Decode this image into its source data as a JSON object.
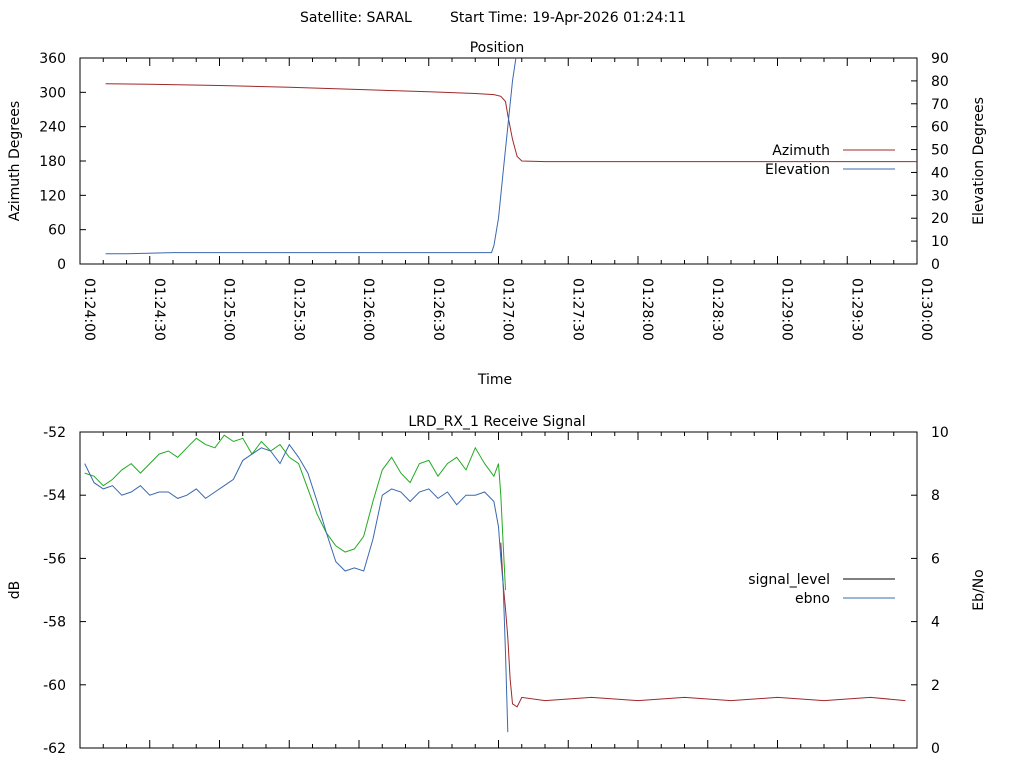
{
  "header": {
    "satellite": "Satellite: SARAL",
    "start_time": "Start Time: 19-Apr-2026 01:24:11"
  },
  "chart_data": [
    {
      "type": "line",
      "title": "Position",
      "xlabel": "Time",
      "ylabel": "Azimuth Degrees",
      "y2label": "Elevation Degrees",
      "x_ticks": [
        "01:24:00",
        "01:24:30",
        "01:25:00",
        "01:25:30",
        "01:26:00",
        "01:26:30",
        "01:27:00",
        "01:27:30",
        "01:28:00",
        "01:28:30",
        "01:29:00",
        "01:29:30",
        "01:30:00"
      ],
      "xlim_seconds": [
        0,
        360
      ],
      "ylim": [
        0,
        360
      ],
      "y2lim": [
        0,
        90
      ],
      "y_ticks": [
        "0",
        "60",
        "120",
        "180",
        "240",
        "300",
        "360"
      ],
      "y2_ticks": [
        "0",
        "10",
        "20",
        "30",
        "40",
        "50",
        "60",
        "70",
        "80",
        "90"
      ],
      "legend": "right",
      "series": [
        {
          "name": "Azimuth",
          "axis": "y",
          "color": "#a0282a",
          "points": [
            [
              11,
              315
            ],
            [
              30,
              314
            ],
            [
              60,
              312
            ],
            [
              90,
              309
            ],
            [
              120,
              305
            ],
            [
              150,
              301
            ],
            [
              170,
              298
            ],
            [
              178,
              296
            ],
            [
              181,
              293
            ],
            [
              183,
              284
            ],
            [
              184,
              260
            ],
            [
              186,
              218
            ],
            [
              188,
              188
            ],
            [
              190,
              180
            ],
            [
              200,
              179
            ],
            [
              250,
              179
            ],
            [
              300,
              179
            ],
            [
              360,
              179
            ]
          ]
        },
        {
          "name": "Elevation",
          "axis": "y2",
          "color": "#3a68b0",
          "points": [
            [
              11,
              4.5
            ],
            [
              20,
              4.5
            ],
            [
              40,
              5
            ],
            [
              80,
              5
            ],
            [
              120,
              5
            ],
            [
              160,
              5
            ],
            [
              175,
              5
            ],
            [
              177,
              5
            ],
            [
              178,
              8
            ],
            [
              180,
              20
            ],
            [
              182,
              40
            ],
            [
              184,
              60
            ],
            [
              186,
              80
            ],
            [
              187.5,
              90
            ]
          ]
        }
      ]
    },
    {
      "type": "line",
      "title": "LRD_RX_1 Receive Signal",
      "ylabel": "dB",
      "y2label": "Eb/No",
      "ylim": [
        -62,
        -52
      ],
      "y2lim": [
        0,
        10
      ],
      "y_ticks": [
        "-52",
        "-54",
        "-56",
        "-58",
        "-60",
        "-62"
      ],
      "y2_ticks": [
        "0",
        "2",
        "4",
        "6",
        "8",
        "10"
      ],
      "xlim_seconds": [
        0,
        360
      ],
      "legend": "right",
      "series": [
        {
          "name": "signal_level",
          "axis": "y",
          "color": "#000000"
        },
        {
          "name": "ebno",
          "axis": "y2",
          "color": "#3a68b0"
        }
      ],
      "unlabeled_series": [
        {
          "axis": "y",
          "color": "#22aa22",
          "points": [
            [
              2,
              -53.3
            ],
            [
              6,
              -53.4
            ],
            [
              10,
              -53.7
            ],
            [
              14,
              -53.5
            ],
            [
              18,
              -53.2
            ],
            [
              22,
              -53.0
            ],
            [
              26,
              -53.3
            ],
            [
              30,
              -53.0
            ],
            [
              34,
              -52.7
            ],
            [
              38,
              -52.6
            ],
            [
              42,
              -52.8
            ],
            [
              46,
              -52.5
            ],
            [
              50,
              -52.2
            ],
            [
              54,
              -52.4
            ],
            [
              58,
              -52.5
            ],
            [
              62,
              -52.1
            ],
            [
              66,
              -52.3
            ],
            [
              70,
              -52.2
            ],
            [
              74,
              -52.7
            ],
            [
              78,
              -52.3
            ],
            [
              82,
              -52.6
            ],
            [
              86,
              -52.4
            ],
            [
              90,
              -52.8
            ],
            [
              94,
              -53.0
            ],
            [
              98,
              -53.8
            ],
            [
              102,
              -54.6
            ],
            [
              106,
              -55.2
            ],
            [
              110,
              -55.6
            ],
            [
              114,
              -55.8
            ],
            [
              118,
              -55.7
            ],
            [
              122,
              -55.3
            ],
            [
              126,
              -54.2
            ],
            [
              130,
              -53.2
            ],
            [
              134,
              -52.8
            ],
            [
              138,
              -53.3
            ],
            [
              142,
              -53.6
            ],
            [
              146,
              -53.0
            ],
            [
              150,
              -52.9
            ],
            [
              154,
              -53.4
            ],
            [
              158,
              -53.0
            ],
            [
              162,
              -52.8
            ],
            [
              166,
              -53.2
            ],
            [
              170,
              -52.5
            ],
            [
              174,
              -53.0
            ],
            [
              178,
              -53.4
            ],
            [
              180,
              -53.0
            ],
            [
              181,
              -54.0
            ],
            [
              182,
              -55.5
            ],
            [
              183,
              -57.0
            ]
          ]
        },
        {
          "axis": "y",
          "color": "#a0282a",
          "points": [
            [
              181,
              -55.5
            ],
            [
              182,
              -56.8
            ],
            [
              183,
              -57.6
            ],
            [
              184,
              -58.5
            ],
            [
              185,
              -59.8
            ],
            [
              186,
              -60.6
            ],
            [
              188,
              -60.7
            ],
            [
              190,
              -60.4
            ],
            [
              200,
              -60.5
            ],
            [
              220,
              -60.4
            ],
            [
              240,
              -60.5
            ],
            [
              260,
              -60.4
            ],
            [
              280,
              -60.5
            ],
            [
              300,
              -60.4
            ],
            [
              320,
              -60.5
            ],
            [
              340,
              -60.4
            ],
            [
              355,
              -60.5
            ]
          ]
        },
        {
          "axis": "y2",
          "color": "#3a68b0",
          "points": [
            [
              2,
              9.0
            ],
            [
              6,
              8.4
            ],
            [
              10,
              8.2
            ],
            [
              14,
              8.3
            ],
            [
              18,
              8.0
            ],
            [
              22,
              8.1
            ],
            [
              26,
              8.3
            ],
            [
              30,
              8.0
            ],
            [
              34,
              8.1
            ],
            [
              38,
              8.1
            ],
            [
              42,
              7.9
            ],
            [
              46,
              8.0
            ],
            [
              50,
              8.2
            ],
            [
              54,
              7.9
            ],
            [
              58,
              8.1
            ],
            [
              62,
              8.3
            ],
            [
              66,
              8.5
            ],
            [
              70,
              9.1
            ],
            [
              74,
              9.3
            ],
            [
              78,
              9.5
            ],
            [
              82,
              9.4
            ],
            [
              86,
              9.0
            ],
            [
              90,
              9.6
            ],
            [
              94,
              9.2
            ],
            [
              98,
              8.7
            ],
            [
              102,
              7.8
            ],
            [
              106,
              6.8
            ],
            [
              110,
              5.9
            ],
            [
              114,
              5.6
            ],
            [
              118,
              5.7
            ],
            [
              122,
              5.6
            ],
            [
              126,
              6.6
            ],
            [
              130,
              8.0
            ],
            [
              134,
              8.2
            ],
            [
              138,
              8.1
            ],
            [
              142,
              7.8
            ],
            [
              146,
              8.1
            ],
            [
              150,
              8.2
            ],
            [
              154,
              7.9
            ],
            [
              158,
              8.1
            ],
            [
              162,
              7.7
            ],
            [
              166,
              8.0
            ],
            [
              170,
              8.0
            ],
            [
              174,
              8.1
            ],
            [
              178,
              7.8
            ],
            [
              180,
              7.0
            ],
            [
              181,
              6.0
            ],
            [
              182,
              5.2
            ],
            [
              183,
              3.0
            ],
            [
              184,
              0.5
            ]
          ]
        }
      ]
    }
  ]
}
